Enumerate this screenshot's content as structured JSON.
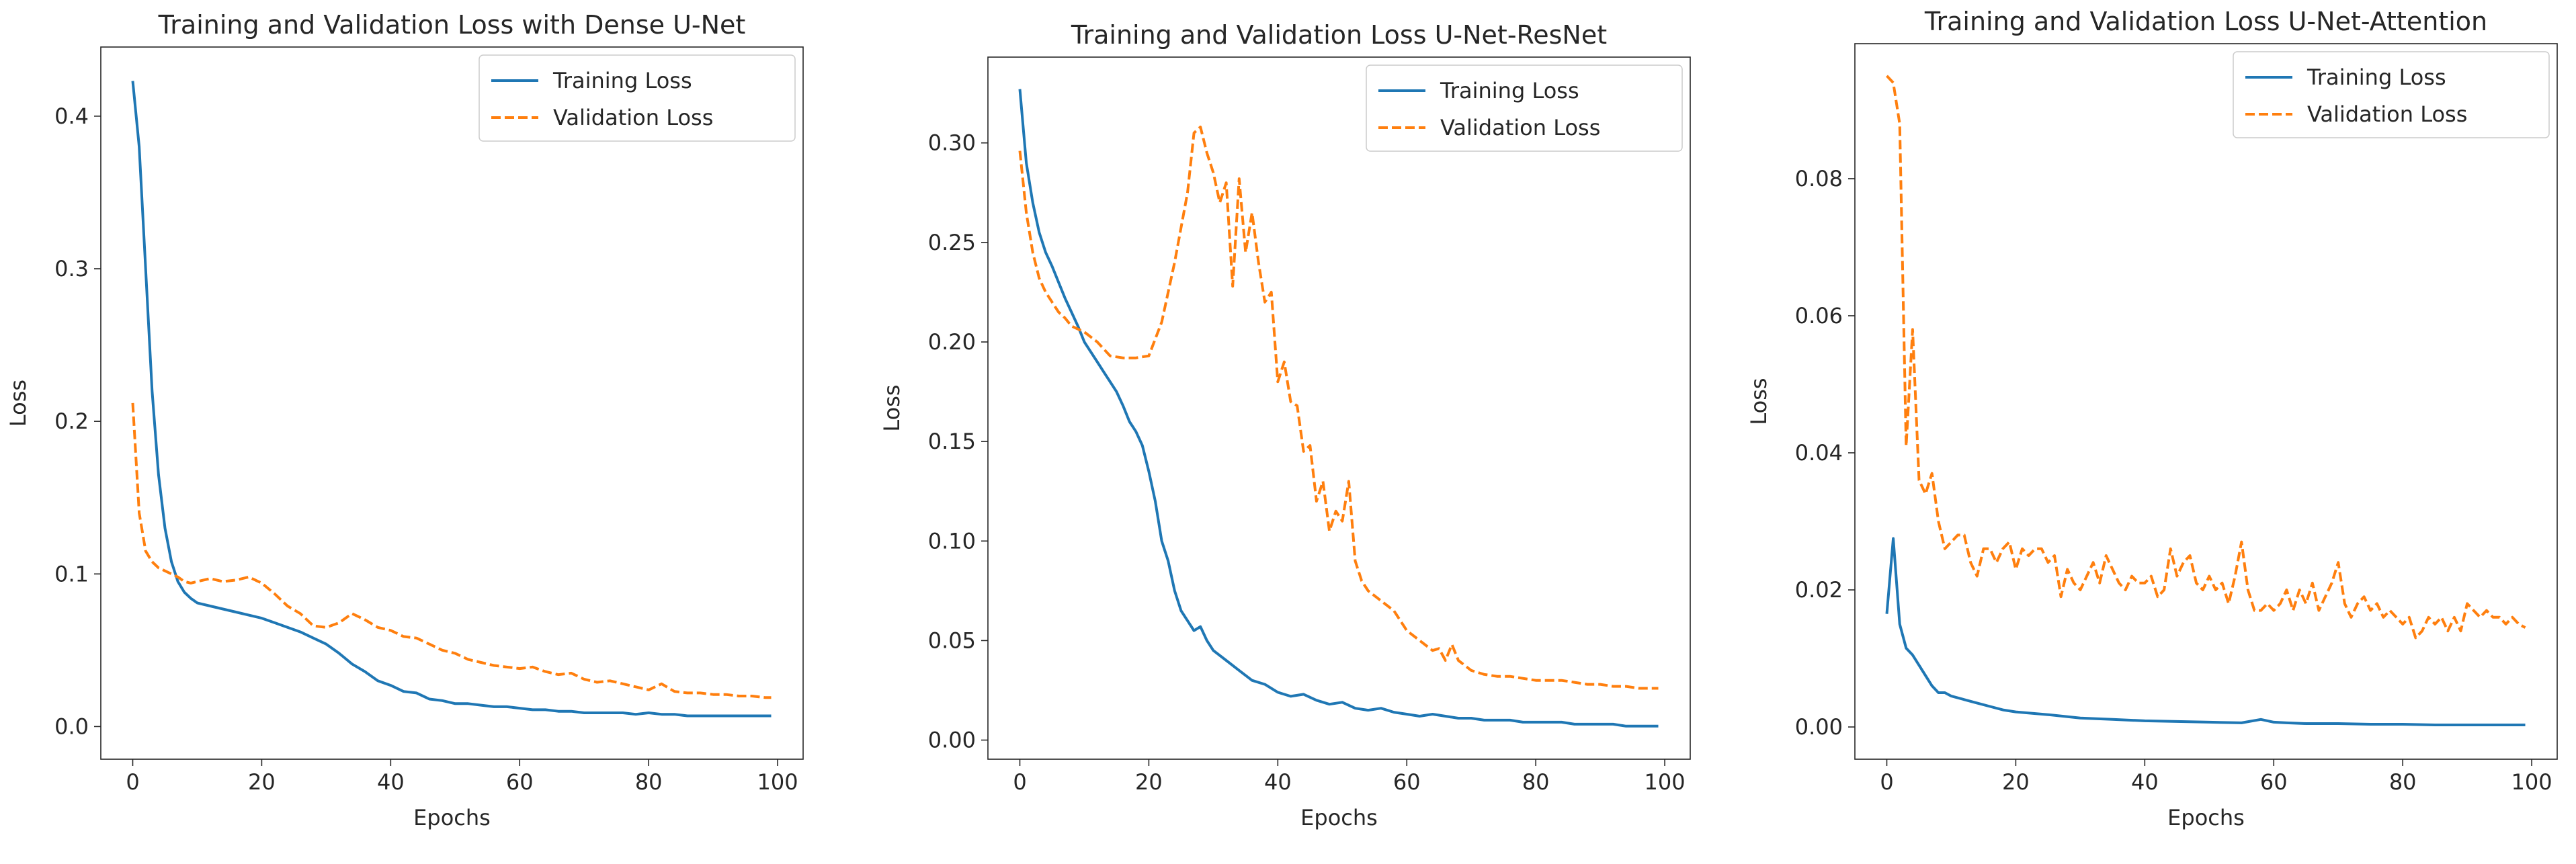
{
  "chart_data": [
    {
      "type": "line",
      "title": "Training and Validation Loss with Dense U-Net",
      "xlabel": "Epochs",
      "ylabel": "Loss",
      "xlim": [
        -4.95,
        103.95
      ],
      "ylim": [
        -0.0214,
        0.4453
      ],
      "xticks": [
        0,
        20,
        40,
        60,
        80,
        100
      ],
      "xtick_labels": [
        "0",
        "20",
        "40",
        "60",
        "80",
        "100"
      ],
      "yticks": [
        0.0,
        0.1,
        0.2,
        0.3,
        0.4
      ],
      "ytick_labels": [
        "0.0",
        "0.1",
        "0.2",
        "0.3",
        "0.4"
      ],
      "legend_loc": "upper right",
      "series": [
        {
          "name": "Training Loss",
          "color": "#1f77b4",
          "style": "solid",
          "x": [
            0,
            1,
            2,
            3,
            4,
            5,
            6,
            7,
            8,
            9,
            10,
            12,
            14,
            16,
            18,
            20,
            22,
            24,
            26,
            28,
            30,
            32,
            34,
            36,
            38,
            40,
            42,
            44,
            46,
            48,
            50,
            52,
            54,
            56,
            58,
            60,
            62,
            64,
            66,
            68,
            70,
            72,
            74,
            76,
            78,
            80,
            82,
            84,
            86,
            88,
            90,
            92,
            94,
            96,
            98,
            99
          ],
          "y": [
            0.423,
            0.38,
            0.3,
            0.22,
            0.165,
            0.13,
            0.108,
            0.095,
            0.088,
            0.084,
            0.081,
            0.079,
            0.077,
            0.075,
            0.073,
            0.071,
            0.068,
            0.065,
            0.062,
            0.058,
            0.054,
            0.048,
            0.041,
            0.036,
            0.03,
            0.027,
            0.023,
            0.022,
            0.018,
            0.017,
            0.015,
            0.015,
            0.014,
            0.013,
            0.013,
            0.012,
            0.011,
            0.011,
            0.01,
            0.01,
            0.009,
            0.009,
            0.009,
            0.009,
            0.008,
            0.009,
            0.008,
            0.008,
            0.007,
            0.007,
            0.007,
            0.007,
            0.007,
            0.007,
            0.007,
            0.007
          ]
        },
        {
          "name": "Validation Loss",
          "color": "#ff7f0e",
          "style": "dashed",
          "x": [
            0,
            1,
            2,
            3,
            4,
            5,
            6,
            7,
            8,
            9,
            10,
            12,
            14,
            16,
            18,
            20,
            22,
            24,
            26,
            28,
            30,
            32,
            34,
            36,
            38,
            40,
            42,
            44,
            46,
            48,
            50,
            52,
            54,
            56,
            58,
            60,
            62,
            64,
            66,
            68,
            70,
            72,
            74,
            76,
            78,
            80,
            82,
            84,
            86,
            88,
            90,
            92,
            94,
            96,
            98,
            99
          ],
          "y": [
            0.212,
            0.14,
            0.115,
            0.108,
            0.104,
            0.102,
            0.1,
            0.098,
            0.095,
            0.094,
            0.095,
            0.097,
            0.095,
            0.096,
            0.098,
            0.094,
            0.087,
            0.079,
            0.074,
            0.066,
            0.065,
            0.068,
            0.074,
            0.07,
            0.065,
            0.063,
            0.059,
            0.058,
            0.054,
            0.05,
            0.048,
            0.044,
            0.042,
            0.04,
            0.039,
            0.038,
            0.039,
            0.036,
            0.034,
            0.035,
            0.031,
            0.029,
            0.03,
            0.028,
            0.026,
            0.024,
            0.028,
            0.023,
            0.022,
            0.022,
            0.021,
            0.021,
            0.02,
            0.02,
            0.019,
            0.019
          ]
        }
      ]
    },
    {
      "type": "line",
      "title": "Training and Validation Loss U-Net-ResNet",
      "xlabel": "Epochs",
      "ylabel": "Loss",
      "xlim": [
        -4.95,
        103.95
      ],
      "ylim": [
        -0.0096,
        0.3431
      ],
      "xticks": [
        0,
        20,
        40,
        60,
        80,
        100
      ],
      "xtick_labels": [
        "0",
        "20",
        "40",
        "60",
        "80",
        "100"
      ],
      "yticks": [
        0.0,
        0.05,
        0.1,
        0.15,
        0.2,
        0.25,
        0.3
      ],
      "ytick_labels": [
        "0.00",
        "0.05",
        "0.10",
        "0.15",
        "0.20",
        "0.25",
        "0.30"
      ],
      "legend_loc": "upper right",
      "series": [
        {
          "name": "Training Loss",
          "color": "#1f77b4",
          "style": "solid",
          "x": [
            0,
            1,
            2,
            3,
            4,
            5,
            6,
            7,
            8,
            9,
            10,
            11,
            12,
            13,
            14,
            15,
            16,
            17,
            18,
            19,
            20,
            21,
            22,
            23,
            24,
            25,
            26,
            27,
            28,
            29,
            30,
            32,
            34,
            36,
            38,
            40,
            42,
            44,
            46,
            48,
            50,
            52,
            54,
            56,
            58,
            60,
            62,
            64,
            66,
            68,
            70,
            72,
            74,
            76,
            78,
            80,
            82,
            84,
            86,
            88,
            90,
            92,
            94,
            96,
            98,
            99
          ],
          "y": [
            0.327,
            0.29,
            0.27,
            0.255,
            0.245,
            0.238,
            0.23,
            0.222,
            0.215,
            0.208,
            0.2,
            0.195,
            0.19,
            0.185,
            0.18,
            0.175,
            0.168,
            0.16,
            0.155,
            0.148,
            0.135,
            0.12,
            0.1,
            0.09,
            0.075,
            0.065,
            0.06,
            0.055,
            0.057,
            0.05,
            0.045,
            0.04,
            0.035,
            0.03,
            0.028,
            0.024,
            0.022,
            0.023,
            0.02,
            0.018,
            0.019,
            0.016,
            0.015,
            0.016,
            0.014,
            0.013,
            0.012,
            0.013,
            0.012,
            0.011,
            0.011,
            0.01,
            0.01,
            0.01,
            0.009,
            0.009,
            0.009,
            0.009,
            0.008,
            0.008,
            0.008,
            0.008,
            0.007,
            0.007,
            0.007,
            0.007
          ]
        },
        {
          "name": "Validation Loss",
          "color": "#ff7f0e",
          "style": "dashed",
          "x": [
            0,
            1,
            2,
            3,
            4,
            5,
            6,
            7,
            8,
            10,
            12,
            14,
            16,
            18,
            20,
            22,
            24,
            26,
            27,
            28,
            29,
            30,
            31,
            32,
            33,
            34,
            35,
            36,
            37,
            38,
            39,
            40,
            41,
            42,
            43,
            44,
            45,
            46,
            47,
            48,
            49,
            50,
            51,
            52,
            53,
            54,
            56,
            58,
            60,
            62,
            64,
            65,
            66,
            67,
            68,
            70,
            72,
            74,
            76,
            78,
            80,
            82,
            84,
            86,
            88,
            90,
            92,
            94,
            96,
            98,
            99
          ],
          "y": [
            0.296,
            0.265,
            0.245,
            0.232,
            0.225,
            0.22,
            0.215,
            0.212,
            0.208,
            0.205,
            0.2,
            0.193,
            0.192,
            0.192,
            0.193,
            0.21,
            0.24,
            0.275,
            0.305,
            0.308,
            0.295,
            0.285,
            0.27,
            0.28,
            0.228,
            0.282,
            0.245,
            0.265,
            0.24,
            0.22,
            0.225,
            0.18,
            0.19,
            0.17,
            0.168,
            0.145,
            0.148,
            0.12,
            0.13,
            0.105,
            0.115,
            0.11,
            0.13,
            0.09,
            0.08,
            0.075,
            0.07,
            0.065,
            0.055,
            0.05,
            0.045,
            0.046,
            0.04,
            0.048,
            0.04,
            0.035,
            0.033,
            0.032,
            0.032,
            0.031,
            0.03,
            0.03,
            0.03,
            0.029,
            0.028,
            0.028,
            0.027,
            0.027,
            0.026,
            0.026,
            0.026
          ]
        }
      ]
    },
    {
      "type": "line",
      "title": "Training and Validation Loss U-Net-Attention",
      "xlabel": "Epochs",
      "ylabel": "Loss",
      "xlim": [
        -4.95,
        103.95
      ],
      "ylim": [
        -0.0047,
        0.0997
      ],
      "xticks": [
        0,
        20,
        40,
        60,
        80,
        100
      ],
      "xtick_labels": [
        "0",
        "20",
        "40",
        "60",
        "80",
        "100"
      ],
      "yticks": [
        0.0,
        0.02,
        0.04,
        0.06,
        0.08
      ],
      "ytick_labels": [
        "0.00",
        "0.02",
        "0.04",
        "0.06",
        "0.08"
      ],
      "legend_loc": "upper right",
      "series": [
        {
          "name": "Training Loss",
          "color": "#1f77b4",
          "style": "solid",
          "x": [
            0,
            1,
            2,
            3,
            4,
            5,
            6,
            7,
            8,
            9,
            10,
            12,
            14,
            16,
            18,
            20,
            25,
            30,
            35,
            40,
            45,
            50,
            55,
            58,
            60,
            62,
            65,
            70,
            75,
            80,
            85,
            90,
            95,
            99
          ],
          "y": [
            0.0165,
            0.0275,
            0.015,
            0.0115,
            0.0105,
            0.009,
            0.0075,
            0.006,
            0.005,
            0.005,
            0.0045,
            0.004,
            0.0035,
            0.003,
            0.0025,
            0.0022,
            0.0018,
            0.0013,
            0.0011,
            0.0009,
            0.0008,
            0.0007,
            0.0006,
            0.0011,
            0.0007,
            0.0006,
            0.0005,
            0.0005,
            0.0004,
            0.0004,
            0.0003,
            0.0003,
            0.0003,
            0.0003
          ]
        },
        {
          "name": "Validation Loss",
          "color": "#ff7f0e",
          "style": "dashed",
          "x": [
            0,
            1,
            2,
            3,
            4,
            5,
            6,
            7,
            8,
            9,
            10,
            11,
            12,
            13,
            14,
            15,
            16,
            17,
            18,
            19,
            20,
            21,
            22,
            23,
            24,
            25,
            26,
            27,
            28,
            29,
            30,
            31,
            32,
            33,
            34,
            35,
            36,
            37,
            38,
            39,
            40,
            41,
            42,
            43,
            44,
            45,
            46,
            47,
            48,
            49,
            50,
            51,
            52,
            53,
            54,
            55,
            56,
            57,
            58,
            59,
            60,
            61,
            62,
            63,
            64,
            65,
            66,
            67,
            68,
            69,
            70,
            71,
            72,
            73,
            74,
            75,
            76,
            77,
            78,
            79,
            80,
            81,
            82,
            83,
            84,
            85,
            86,
            87,
            88,
            89,
            90,
            91,
            92,
            93,
            94,
            95,
            96,
            97,
            98,
            99
          ],
          "y": [
            0.095,
            0.094,
            0.088,
            0.041,
            0.058,
            0.036,
            0.034,
            0.037,
            0.03,
            0.026,
            0.027,
            0.028,
            0.028,
            0.024,
            0.022,
            0.026,
            0.026,
            0.024,
            0.026,
            0.027,
            0.023,
            0.026,
            0.025,
            0.026,
            0.026,
            0.024,
            0.025,
            0.019,
            0.023,
            0.021,
            0.02,
            0.022,
            0.024,
            0.021,
            0.025,
            0.023,
            0.021,
            0.02,
            0.022,
            0.021,
            0.021,
            0.022,
            0.019,
            0.02,
            0.026,
            0.022,
            0.024,
            0.025,
            0.021,
            0.02,
            0.022,
            0.02,
            0.021,
            0.018,
            0.022,
            0.027,
            0.02,
            0.017,
            0.017,
            0.018,
            0.017,
            0.018,
            0.02,
            0.017,
            0.02,
            0.018,
            0.021,
            0.017,
            0.019,
            0.021,
            0.024,
            0.018,
            0.016,
            0.018,
            0.019,
            0.017,
            0.018,
            0.016,
            0.017,
            0.016,
            0.015,
            0.016,
            0.013,
            0.014,
            0.016,
            0.015,
            0.016,
            0.014,
            0.016,
            0.014,
            0.018,
            0.017,
            0.016,
            0.017,
            0.016,
            0.016,
            0.015,
            0.016,
            0.015,
            0.0145
          ]
        }
      ]
    }
  ]
}
